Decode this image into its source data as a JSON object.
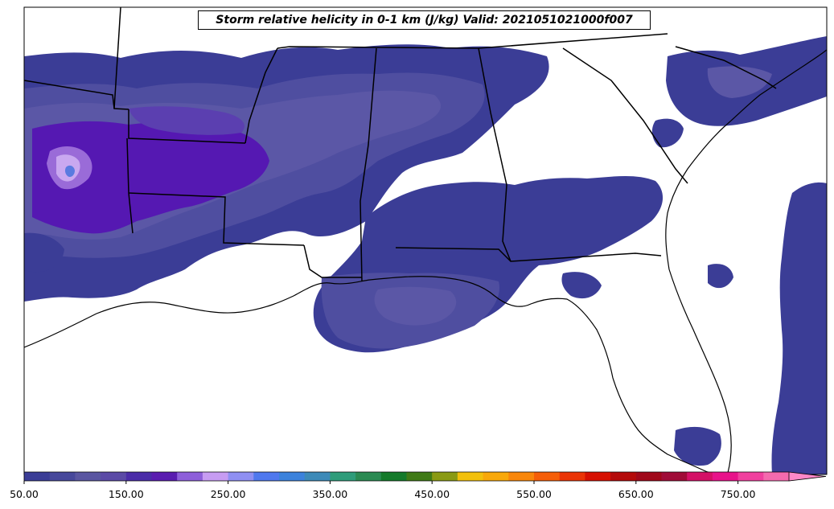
{
  "title": "Storm relative helicity in 0-1 km (J/kg) Valid: 2021051021000f007",
  "colorbar": {
    "min": 50,
    "step": 25,
    "tick_labels": [
      "50.00",
      "150.00",
      "250.00",
      "350.00",
      "450.00",
      "550.00",
      "650.00",
      "750.00"
    ],
    "tick_values": [
      50,
      150,
      250,
      350,
      450,
      550,
      650,
      750
    ],
    "extend": "max",
    "colors": [
      "#3b3d96",
      "#47489b",
      "#5a56a1",
      "#5b4aa6",
      "#4b2ca8",
      "#5a1cb0",
      "#8e5fda",
      "#c79cf2",
      "#8f8ff2",
      "#4f78ee",
      "#3c82dc",
      "#3d8ab8",
      "#2e9c7a",
      "#2a8a52",
      "#147a2a",
      "#3f7a16",
      "#8a9a14",
      "#f2c00c",
      "#f8a80a",
      "#f8860a",
      "#f55e08",
      "#ea3406",
      "#d61002",
      "#b40a0a",
      "#a0081a",
      "#a00c38",
      "#d41066",
      "#e8128a",
      "#f0409e",
      "#f46aae",
      "#ff88c8"
    ]
  },
  "map": {
    "colors": {
      "level1": "#3b3d96",
      "level2": "#4f4ea0",
      "level3": "#5b57a6",
      "level4": "#5b3fb0",
      "level5": "#5518b2",
      "level6": "#9a6bd8",
      "level7": "#c9a8f0",
      "level8": "#5a7ae0",
      "boundary": "#000000"
    }
  }
}
